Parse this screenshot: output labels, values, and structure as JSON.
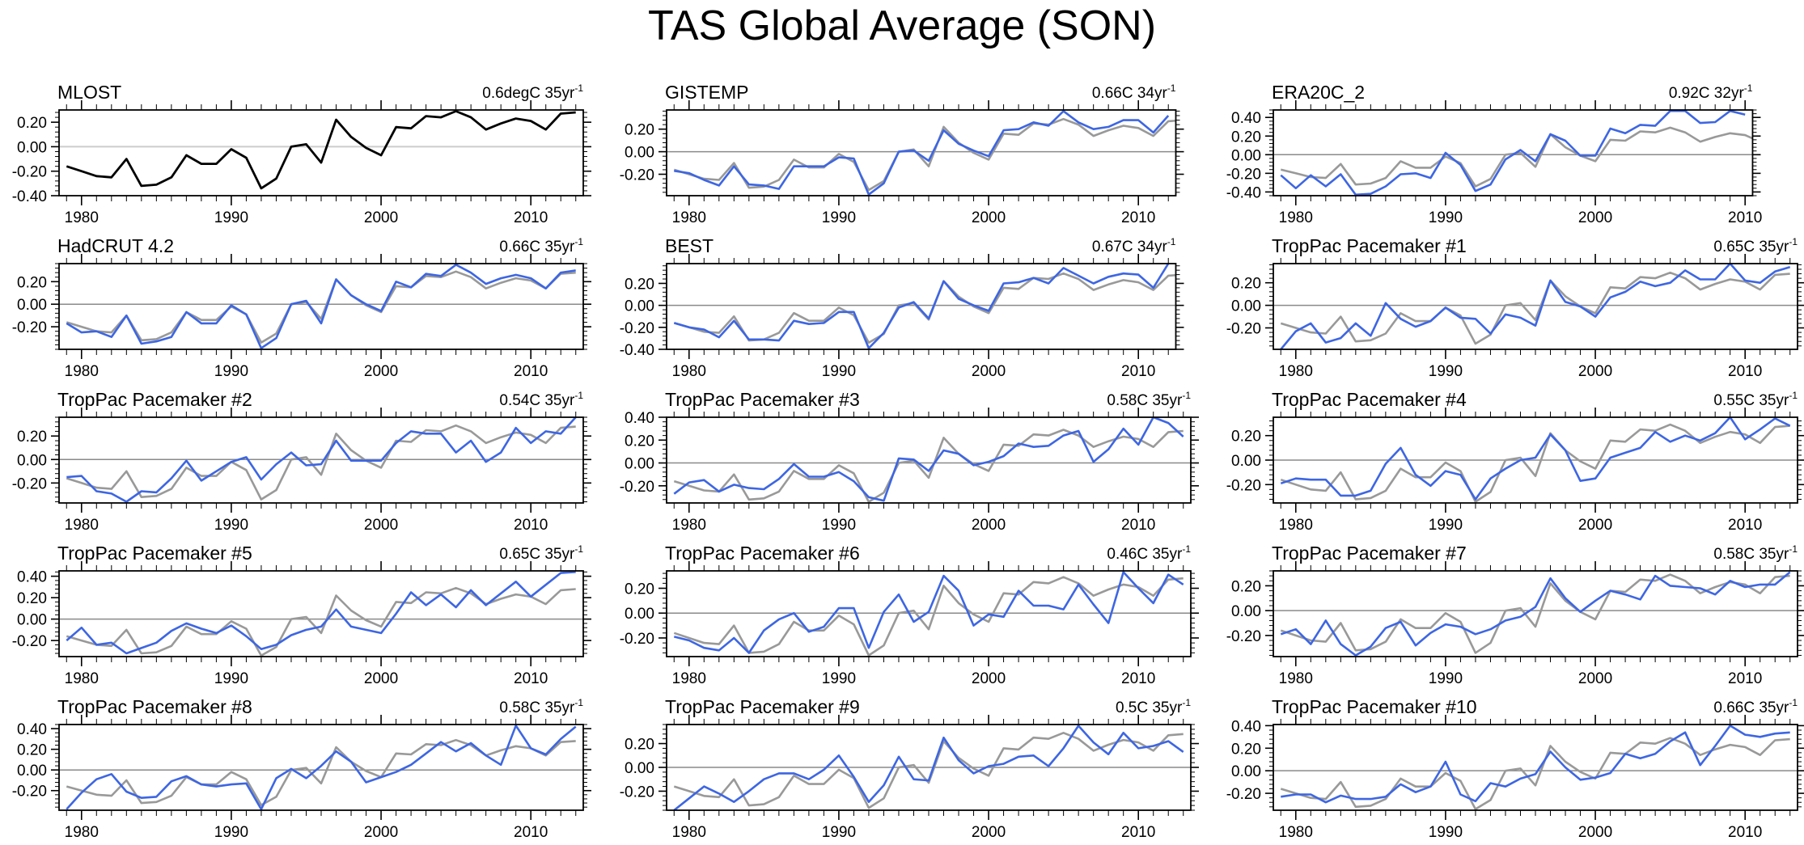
{
  "title": "TAS Global Average (SON)",
  "colors": {
    "reference": "#999999",
    "model": "#3d66e3",
    "mlost": "#000000",
    "zero_line_light": "#cccccc",
    "zero_line": "#8a8a8a"
  },
  "reference_series": {
    "name": "MLOST",
    "x_start": 1979,
    "values": [
      -0.16,
      -0.2,
      -0.24,
      -0.25,
      -0.1,
      -0.32,
      -0.31,
      -0.25,
      -0.07,
      -0.14,
      -0.14,
      -0.02,
      -0.09,
      -0.34,
      -0.26,
      0.0,
      0.02,
      -0.13,
      0.22,
      0.08,
      -0.01,
      -0.07,
      0.16,
      0.15,
      0.25,
      0.24,
      0.29,
      0.24,
      0.14,
      0.19,
      0.23,
      0.21,
      0.14,
      0.27,
      0.28
    ]
  },
  "chart_data": [
    {
      "type": "line",
      "title": "MLOST",
      "trend": "0.6degC 35yr",
      "trend_exp": "-1",
      "is_reference": true,
      "x_start": 1979,
      "xlim": [
        1978.5,
        2013.5
      ],
      "ylim": [
        -0.4,
        0.3
      ],
      "yticks": [
        -0.4,
        -0.2,
        0,
        0.2
      ],
      "xticks": [
        1980,
        1990,
        2000,
        2010
      ],
      "values": [
        -0.16,
        -0.2,
        -0.24,
        -0.25,
        -0.1,
        -0.32,
        -0.31,
        -0.25,
        -0.07,
        -0.14,
        -0.14,
        -0.02,
        -0.09,
        -0.34,
        -0.26,
        0.0,
        0.02,
        -0.13,
        0.22,
        0.08,
        -0.01,
        -0.07,
        0.16,
        0.15,
        0.25,
        0.24,
        0.29,
        0.24,
        0.14,
        0.19,
        0.23,
        0.21,
        0.14,
        0.27,
        0.28
      ]
    },
    {
      "type": "line",
      "title": "GISTEMP",
      "trend": "0.66C 34yr",
      "trend_exp": "-1",
      "x_start": 1979,
      "xlim": [
        1978.5,
        2012.5
      ],
      "ylim": [
        -0.39,
        0.37
      ],
      "yticks": [
        -0.2,
        0,
        0.2
      ],
      "xticks": [
        1980,
        1990,
        2000,
        2010
      ],
      "values": [
        -0.17,
        -0.19,
        -0.25,
        -0.3,
        -0.13,
        -0.29,
        -0.3,
        -0.33,
        -0.13,
        -0.13,
        -0.13,
        -0.05,
        -0.06,
        -0.38,
        -0.28,
        0.0,
        0.01,
        -0.08,
        0.19,
        0.07,
        0.01,
        -0.04,
        0.19,
        0.2,
        0.26,
        0.23,
        0.36,
        0.26,
        0.2,
        0.22,
        0.28,
        0.28,
        0.17,
        0.32
      ]
    },
    {
      "type": "line",
      "title": "ERA20C_2",
      "trend": "0.92C 32yr",
      "trend_exp": "-1",
      "x_start": 1979,
      "xlim": [
        1978.5,
        2010.5
      ],
      "ylim": [
        -0.44,
        0.48
      ],
      "yticks": [
        -0.4,
        -0.2,
        0,
        0.2,
        0.4
      ],
      "xticks": [
        1980,
        1990,
        2000,
        2010
      ],
      "values": [
        -0.22,
        -0.36,
        -0.22,
        -0.34,
        -0.21,
        -0.43,
        -0.42,
        -0.34,
        -0.21,
        -0.2,
        -0.25,
        0.02,
        -0.11,
        -0.39,
        -0.32,
        -0.05,
        0.05,
        -0.07,
        0.22,
        0.15,
        -0.01,
        -0.01,
        0.28,
        0.23,
        0.32,
        0.31,
        0.47,
        0.47,
        0.34,
        0.35,
        0.47,
        0.43
      ]
    },
    {
      "type": "line",
      "title": "HadCRUT 4.2",
      "trend": "0.66C 35yr",
      "trend_exp": "-1",
      "x_start": 1979,
      "xlim": [
        1978.5,
        2013.5
      ],
      "ylim": [
        -0.4,
        0.36
      ],
      "yticks": [
        -0.2,
        0,
        0.2
      ],
      "xticks": [
        1980,
        1990,
        2000,
        2010
      ],
      "values": [
        -0.17,
        -0.25,
        -0.24,
        -0.29,
        -0.1,
        -0.35,
        -0.33,
        -0.29,
        -0.07,
        -0.17,
        -0.17,
        -0.01,
        -0.09,
        -0.39,
        -0.3,
        0.0,
        0.03,
        -0.17,
        0.22,
        0.08,
        0.0,
        -0.06,
        0.2,
        0.15,
        0.27,
        0.25,
        0.35,
        0.28,
        0.18,
        0.23,
        0.26,
        0.23,
        0.14,
        0.28,
        0.3
      ]
    },
    {
      "type": "line",
      "title": "BEST",
      "trend": "0.67C 34yr",
      "trend_exp": "-1",
      "x_start": 1979,
      "xlim": [
        1978.5,
        2012.5
      ],
      "ylim": [
        -0.4,
        0.38
      ],
      "yticks": [
        -0.4,
        -0.2,
        0,
        0.2
      ],
      "xticks": [
        1980,
        1990,
        2000,
        2010
      ],
      "values": [
        -0.16,
        -0.2,
        -0.22,
        -0.29,
        -0.14,
        -0.31,
        -0.31,
        -0.32,
        -0.14,
        -0.17,
        -0.16,
        -0.06,
        -0.06,
        -0.39,
        -0.25,
        -0.02,
        0.03,
        -0.12,
        0.22,
        0.06,
        0.0,
        -0.05,
        0.2,
        0.21,
        0.25,
        0.2,
        0.34,
        0.27,
        0.2,
        0.26,
        0.29,
        0.28,
        0.16,
        0.38
      ]
    },
    {
      "type": "line",
      "title": "TropPac Pacemaker #1",
      "trend": "0.65C 35yr",
      "trend_exp": "-1",
      "x_start": 1979,
      "xlim": [
        1978.5,
        2013.5
      ],
      "ylim": [
        -0.39,
        0.37
      ],
      "yticks": [
        -0.2,
        0,
        0.2
      ],
      "xticks": [
        1980,
        1990,
        2000,
        2010
      ],
      "values": [
        -0.39,
        -0.23,
        -0.16,
        -0.33,
        -0.29,
        -0.16,
        -0.27,
        0.02,
        -0.12,
        -0.19,
        -0.14,
        -0.02,
        -0.11,
        -0.12,
        -0.25,
        -0.08,
        -0.11,
        -0.18,
        0.22,
        0.03,
        -0.01,
        -0.1,
        0.07,
        0.12,
        0.21,
        0.17,
        0.2,
        0.31,
        0.23,
        0.23,
        0.37,
        0.22,
        0.2,
        0.3,
        0.34
      ]
    },
    {
      "type": "line",
      "title": "TropPac Pacemaker #2",
      "trend": "0.54C 35yr",
      "trend_exp": "-1",
      "x_start": 1979,
      "xlim": [
        1978.5,
        2013.5
      ],
      "ylim": [
        -0.37,
        0.36
      ],
      "yticks": [
        -0.2,
        0,
        0.2
      ],
      "xticks": [
        1980,
        1990,
        2000,
        2010
      ],
      "values": [
        -0.15,
        -0.14,
        -0.27,
        -0.29,
        -0.36,
        -0.27,
        -0.28,
        -0.16,
        -0.01,
        -0.18,
        -0.1,
        -0.02,
        0.02,
        -0.17,
        -0.04,
        0.06,
        -0.05,
        -0.04,
        0.16,
        -0.01,
        -0.01,
        -0.01,
        0.14,
        0.24,
        0.22,
        0.22,
        0.06,
        0.16,
        -0.02,
        0.06,
        0.27,
        0.14,
        0.24,
        0.22,
        0.36
      ]
    },
    {
      "type": "line",
      "title": "TropPac Pacemaker #3",
      "trend": "0.58C 35yr",
      "trend_exp": "-1",
      "x_start": 1979,
      "xlim": [
        1978.5,
        2013.5
      ],
      "ylim": [
        -0.35,
        0.4
      ],
      "yticks": [
        -0.2,
        0,
        0.2,
        0.4
      ],
      "xticks": [
        1980,
        1990,
        2000,
        2010
      ],
      "values": [
        -0.27,
        -0.17,
        -0.15,
        -0.25,
        -0.19,
        -0.22,
        -0.23,
        -0.14,
        -0.01,
        -0.12,
        -0.12,
        -0.08,
        -0.16,
        -0.3,
        -0.33,
        0.04,
        0.03,
        -0.07,
        0.11,
        0.08,
        -0.02,
        0.01,
        0.06,
        0.17,
        0.14,
        0.15,
        0.24,
        0.28,
        0.01,
        0.12,
        0.3,
        0.16,
        0.4,
        0.35,
        0.23
      ]
    },
    {
      "type": "line",
      "title": "TropPac Pacemaker #4",
      "trend": "0.55C 35yr",
      "trend_exp": "-1",
      "x_start": 1979,
      "xlim": [
        1978.5,
        2013.5
      ],
      "ylim": [
        -0.35,
        0.35
      ],
      "yticks": [
        -0.2,
        0,
        0.2
      ],
      "xticks": [
        1980,
        1990,
        2000,
        2010
      ],
      "values": [
        -0.19,
        -0.15,
        -0.16,
        -0.16,
        -0.29,
        -0.29,
        -0.25,
        -0.03,
        0.1,
        -0.12,
        -0.21,
        -0.09,
        -0.12,
        -0.32,
        -0.15,
        -0.07,
        0.0,
        0.02,
        0.21,
        0.08,
        -0.17,
        -0.15,
        0.02,
        0.06,
        0.1,
        0.23,
        0.15,
        0.2,
        0.16,
        0.22,
        0.35,
        0.17,
        0.25,
        0.34,
        0.28
      ]
    },
    {
      "type": "line",
      "title": "TropPac Pacemaker #5",
      "trend": "0.65C 35yr",
      "trend_exp": "-1",
      "x_start": 1979,
      "xlim": [
        1978.5,
        2013.5
      ],
      "ylim": [
        -0.35,
        0.45
      ],
      "yticks": [
        -0.2,
        0,
        0.2,
        0.4
      ],
      "xticks": [
        1980,
        1990,
        2000,
        2010
      ],
      "values": [
        -0.2,
        -0.08,
        -0.24,
        -0.22,
        -0.32,
        -0.27,
        -0.22,
        -0.11,
        -0.04,
        -0.09,
        -0.13,
        -0.06,
        -0.16,
        -0.28,
        -0.24,
        -0.15,
        -0.1,
        -0.07,
        0.09,
        -0.07,
        -0.1,
        -0.13,
        0.05,
        0.25,
        0.13,
        0.23,
        0.11,
        0.27,
        0.13,
        0.24,
        0.35,
        0.21,
        0.32,
        0.43,
        0.44
      ]
    },
    {
      "type": "line",
      "title": "TropPac Pacemaker #6",
      "trend": "0.46C 35yr",
      "trend_exp": "-1",
      "x_start": 1979,
      "xlim": [
        1978.5,
        2013.5
      ],
      "ylim": [
        -0.35,
        0.34
      ],
      "yticks": [
        -0.2,
        0,
        0.2
      ],
      "xticks": [
        1980,
        1990,
        2000,
        2010
      ],
      "values": [
        -0.19,
        -0.22,
        -0.28,
        -0.3,
        -0.2,
        -0.32,
        -0.14,
        -0.05,
        0.0,
        -0.15,
        -0.11,
        0.04,
        0.04,
        -0.28,
        0.01,
        0.15,
        -0.07,
        0.01,
        0.3,
        0.18,
        -0.1,
        -0.01,
        -0.03,
        0.18,
        0.06,
        0.06,
        0.03,
        0.23,
        0.07,
        -0.08,
        0.33,
        0.2,
        0.08,
        0.31,
        0.23
      ]
    },
    {
      "type": "line",
      "title": "TropPac Pacemaker #7",
      "trend": "0.58C 35yr",
      "trend_exp": "-1",
      "x_start": 1979,
      "xlim": [
        1978.5,
        2013.5
      ],
      "ylim": [
        -0.37,
        0.32
      ],
      "yticks": [
        -0.2,
        0,
        0.2
      ],
      "xticks": [
        1980,
        1990,
        2000,
        2010
      ],
      "values": [
        -0.19,
        -0.15,
        -0.27,
        -0.08,
        -0.27,
        -0.36,
        -0.29,
        -0.14,
        -0.09,
        -0.28,
        -0.18,
        -0.11,
        -0.13,
        -0.19,
        -0.15,
        -0.08,
        -0.05,
        0.03,
        0.26,
        0.1,
        -0.01,
        0.08,
        0.16,
        0.13,
        0.09,
        0.28,
        0.2,
        0.19,
        0.18,
        0.13,
        0.24,
        0.19,
        0.21,
        0.21,
        0.31
      ]
    },
    {
      "type": "line",
      "title": "TropPac Pacemaker #8",
      "trend": "0.58C 35yr",
      "trend_exp": "-1",
      "x_start": 1979,
      "xlim": [
        1978.5,
        2013.5
      ],
      "ylim": [
        -0.39,
        0.44
      ],
      "yticks": [
        -0.2,
        0,
        0.2,
        0.4
      ],
      "xticks": [
        1980,
        1990,
        2000,
        2010
      ],
      "values": [
        -0.38,
        -0.22,
        -0.09,
        -0.04,
        -0.21,
        -0.27,
        -0.26,
        -0.11,
        -0.06,
        -0.14,
        -0.16,
        -0.14,
        -0.13,
        -0.38,
        -0.08,
        0.01,
        -0.08,
        0.04,
        0.18,
        0.08,
        -0.12,
        -0.07,
        -0.02,
        0.05,
        0.16,
        0.27,
        0.18,
        0.26,
        0.14,
        0.05,
        0.43,
        0.21,
        0.15,
        0.3,
        0.42
      ]
    },
    {
      "type": "line",
      "title": "TropPac Pacemaker #9",
      "trend": "0.5C 35yr",
      "trend_exp": "-1",
      "x_start": 1979,
      "xlim": [
        1978.5,
        2013.5
      ],
      "ylim": [
        -0.36,
        0.36
      ],
      "yticks": [
        -0.2,
        0,
        0.2
      ],
      "xticks": [
        1980,
        1990,
        2000,
        2010
      ],
      "values": [
        -0.36,
        -0.26,
        -0.16,
        -0.22,
        -0.29,
        -0.2,
        -0.1,
        -0.05,
        -0.05,
        -0.1,
        -0.02,
        0.1,
        -0.08,
        -0.29,
        -0.15,
        0.09,
        -0.1,
        -0.11,
        0.25,
        0.06,
        -0.05,
        0.01,
        0.03,
        0.09,
        0.1,
        0.01,
        0.16,
        0.35,
        0.21,
        0.11,
        0.29,
        0.16,
        0.18,
        0.22,
        0.13
      ]
    },
    {
      "type": "line",
      "title": "TropPac Pacemaker #10",
      "trend": "0.66C 35yr",
      "trend_exp": "-1",
      "x_start": 1979,
      "xlim": [
        1978.5,
        2013.5
      ],
      "ylim": [
        -0.35,
        0.41
      ],
      "yticks": [
        -0.2,
        0,
        0.2,
        0.4
      ],
      "xticks": [
        1980,
        1990,
        2000,
        2010
      ],
      "values": [
        -0.23,
        -0.21,
        -0.21,
        -0.28,
        -0.22,
        -0.25,
        -0.25,
        -0.23,
        -0.12,
        -0.19,
        -0.14,
        0.08,
        -0.21,
        -0.27,
        -0.11,
        -0.14,
        -0.07,
        -0.03,
        0.17,
        0.03,
        -0.08,
        -0.06,
        -0.02,
        0.15,
        0.11,
        0.15,
        0.26,
        0.34,
        0.05,
        0.22,
        0.4,
        0.32,
        0.3,
        0.33,
        0.34
      ]
    }
  ]
}
